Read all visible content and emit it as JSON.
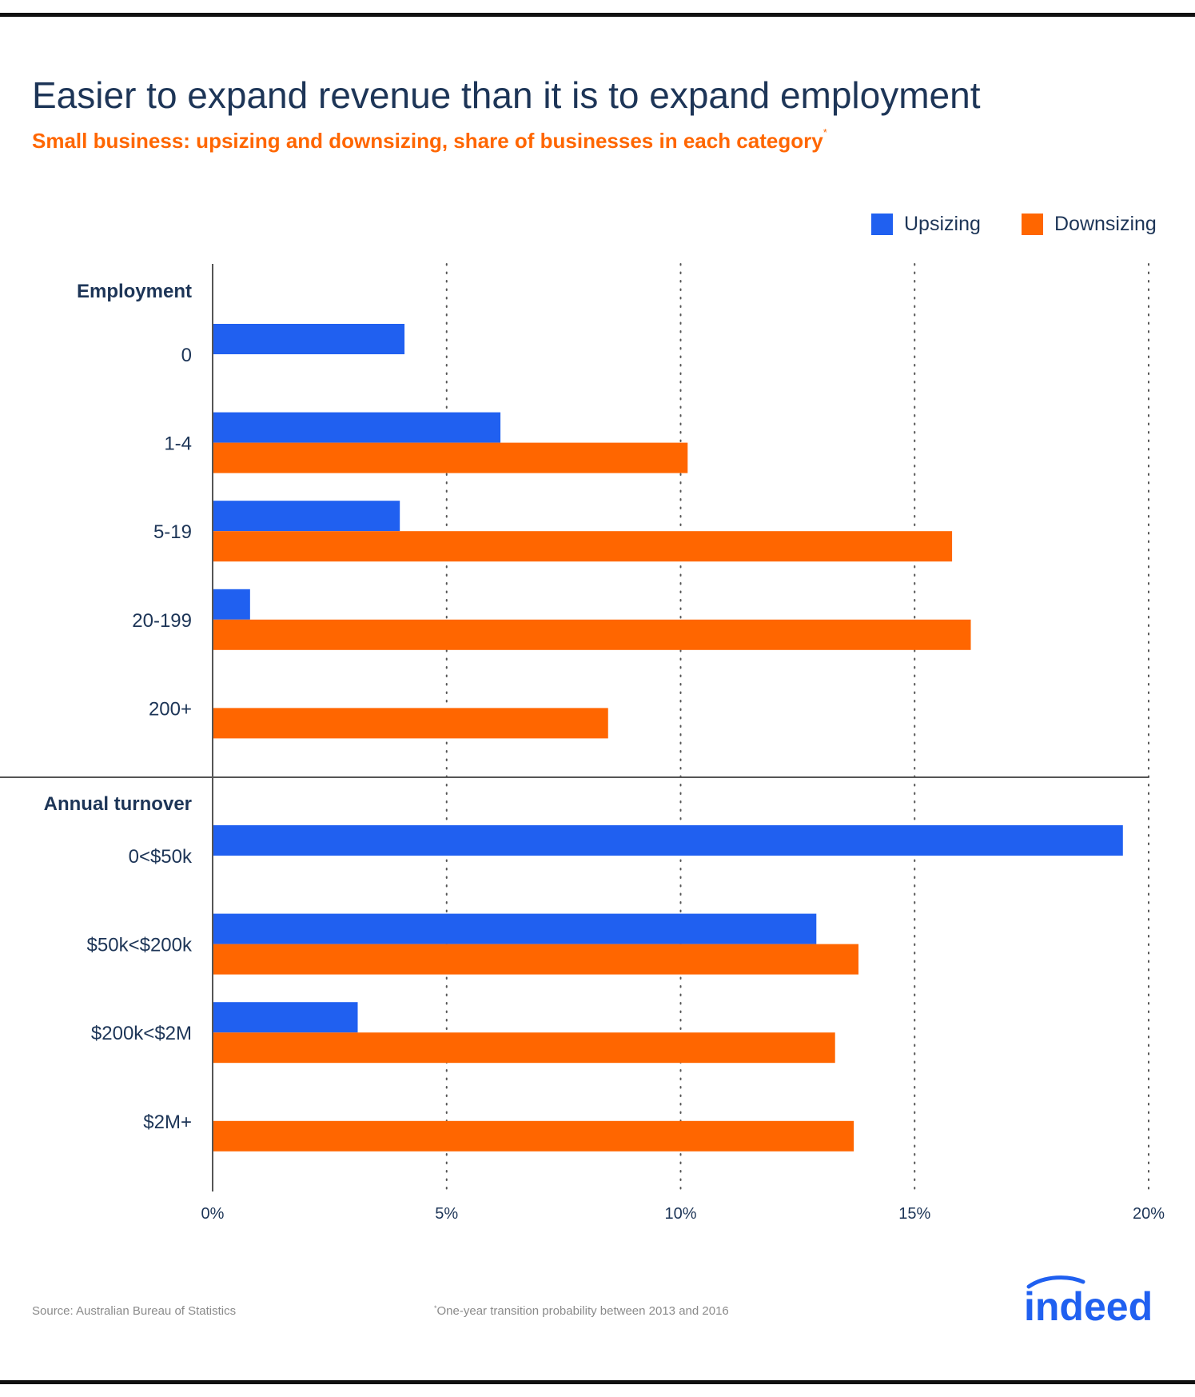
{
  "title": "Easier to expand revenue than it is to expand employment",
  "subtitle": "Small business: upsizing and downsizing, share of businesses in each category",
  "subtitle_marker": "*",
  "legend": [
    {
      "label": "Upsizing",
      "color": "#2060f0"
    },
    {
      "label": "Downsizing",
      "color": "#ff6600"
    }
  ],
  "chart_data": {
    "type": "bar",
    "orientation": "horizontal",
    "xlim": [
      0,
      20
    ],
    "x_ticks": [
      "0%",
      "5%",
      "10%",
      "15%",
      "20%"
    ],
    "grid": "vertical dotted",
    "legend_position": "top-right",
    "groups": [
      {
        "label": "Employment",
        "categories": [
          "0",
          "1-4",
          "5-19",
          "20-199",
          "200+"
        ],
        "series": [
          {
            "name": "Upsizing",
            "values": [
              4.1,
              6.15,
              4.0,
              0.8,
              null
            ]
          },
          {
            "name": "Downsizing",
            "values": [
              null,
              10.15,
              15.8,
              16.2,
              8.45
            ]
          }
        ]
      },
      {
        "label": "Annual turnover",
        "categories": [
          "0<$50k",
          "$50k<$200k",
          "$200k<$2M",
          "$2M+"
        ],
        "series": [
          {
            "name": "Upsizing",
            "values": [
              19.45,
              12.9,
              3.1,
              null
            ]
          },
          {
            "name": "Downsizing",
            "values": [
              null,
              13.8,
              13.3,
              13.7
            ]
          }
        ]
      }
    ]
  },
  "footer": {
    "source": "Source: Australian Bureau of Statistics",
    "note_marker": "*",
    "note": "One-year transition probability between 2013 and 2016"
  },
  "logo_text": "indeed",
  "colors": {
    "upsizing": "#2060f0",
    "downsizing": "#ff6600",
    "navy": "#1d3557"
  }
}
